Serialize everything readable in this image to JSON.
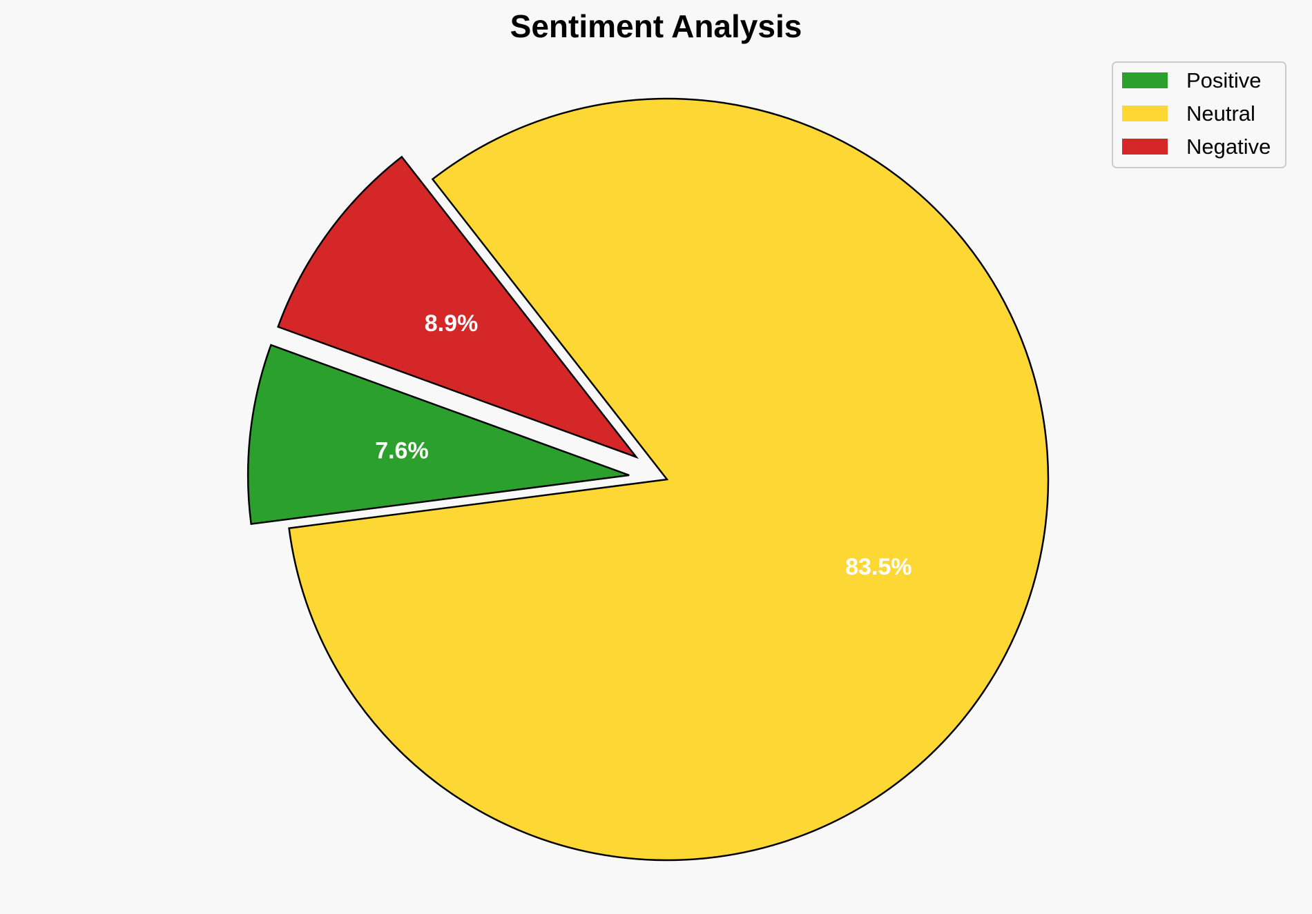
{
  "chart_data": {
    "type": "pie",
    "title": "Sentiment Analysis",
    "slices": [
      {
        "name": "Positive",
        "percent": 7.6,
        "label": "7.6%",
        "color": "#2ca02c",
        "exploded": true
      },
      {
        "name": "Neutral",
        "percent": 83.5,
        "label": "83.5%",
        "color": "#fdd835",
        "exploded": false
      },
      {
        "name": "Negative",
        "percent": 8.9,
        "label": "8.9%",
        "color": "#d62728",
        "exploded": true
      }
    ],
    "legend": {
      "placement": "top-right",
      "entries": [
        "Positive",
        "Neutral",
        "Negative"
      ]
    }
  }
}
